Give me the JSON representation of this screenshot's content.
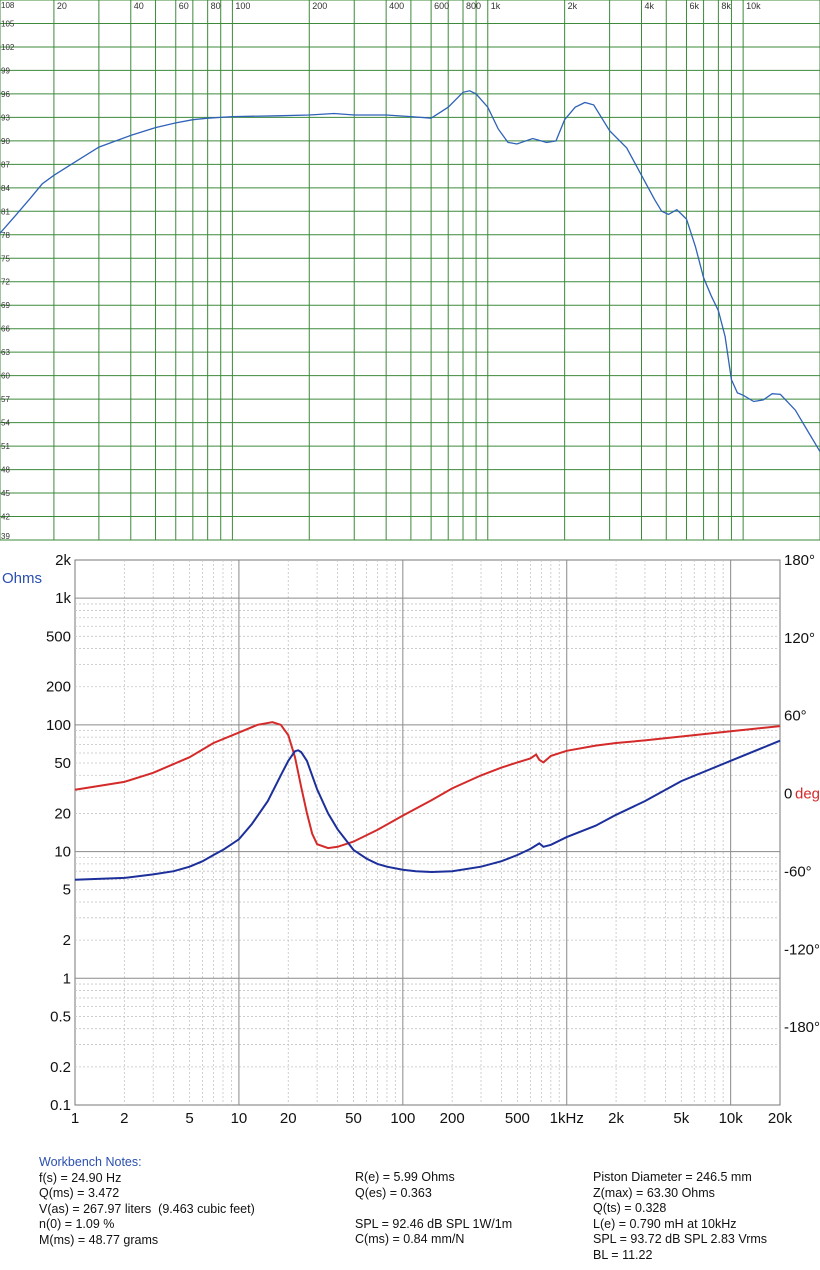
{
  "chart_data": [
    {
      "type": "line",
      "title": "",
      "xlabel": "",
      "ylabel": "",
      "x_scale": "log",
      "xlim": [
        12.3,
        20000
      ],
      "ylim": [
        39,
        108
      ],
      "x_ticks": [
        {
          "value": 20,
          "label": "20"
        },
        {
          "value": 40,
          "label": "40"
        },
        {
          "value": 60,
          "label": "60"
        },
        {
          "value": 80,
          "label": "80"
        },
        {
          "value": 100,
          "label": "100"
        },
        {
          "value": 200,
          "label": "200"
        },
        {
          "value": 400,
          "label": "400"
        },
        {
          "value": 600,
          "label": "600"
        },
        {
          "value": 800,
          "label": "800"
        },
        {
          "value": 1000,
          "label": "1k"
        },
        {
          "value": 2000,
          "label": "2k"
        },
        {
          "value": 4000,
          "label": "4k"
        },
        {
          "value": 6000,
          "label": "6k"
        },
        {
          "value": 8000,
          "label": "8k"
        },
        {
          "value": 10000,
          "label": "10k"
        }
      ],
      "y_ticks": [
        108,
        105,
        102,
        99,
        96,
        93,
        90,
        87,
        84,
        81,
        78,
        75,
        72,
        69,
        66,
        63,
        60,
        57,
        54,
        51,
        48,
        45,
        42,
        39
      ],
      "grid": true,
      "grid_color": "#3c8a3a",
      "series": [
        {
          "color": "#2f62b8",
          "points": [
            [
              12.3,
              78.2
            ],
            [
              14,
              80.3
            ],
            [
              16,
              82.5
            ],
            [
              18,
              84.5
            ],
            [
              20,
              85.6
            ],
            [
              25,
              87.6
            ],
            [
              30,
              89.2
            ],
            [
              40,
              90.7
            ],
            [
              50,
              91.7
            ],
            [
              60,
              92.3
            ],
            [
              70,
              92.7
            ],
            [
              80,
              92.9
            ],
            [
              100,
              93.1
            ],
            [
              150,
              93.2
            ],
            [
              200,
              93.3
            ],
            [
              250,
              93.5
            ],
            [
              300,
              93.3
            ],
            [
              400,
              93.3
            ],
            [
              500,
              93.1
            ],
            [
              600,
              92.9
            ],
            [
              700,
              94.3
            ],
            [
              800,
              96.2
            ],
            [
              850,
              96.4
            ],
            [
              900,
              96.0
            ],
            [
              1000,
              94.3
            ],
            [
              1100,
              91.5
            ],
            [
              1200,
              89.8
            ],
            [
              1300,
              89.6
            ],
            [
              1500,
              90.3
            ],
            [
              1700,
              89.8
            ],
            [
              1850,
              90.0
            ],
            [
              2000,
              92.7
            ],
            [
              2200,
              94.3
            ],
            [
              2400,
              94.9
            ],
            [
              2600,
              94.6
            ],
            [
              3000,
              91.3
            ],
            [
              3500,
              89.1
            ],
            [
              4000,
              85.6
            ],
            [
              4500,
              82.5
            ],
            [
              4800,
              81.0
            ],
            [
              5100,
              80.6
            ],
            [
              5500,
              81.2
            ],
            [
              6000,
              80.0
            ],
            [
              6500,
              76.5
            ],
            [
              7000,
              72.5
            ],
            [
              7500,
              70.2
            ],
            [
              8000,
              68.3
            ],
            [
              8500,
              65.0
            ],
            [
              9000,
              59.5
            ],
            [
              9500,
              57.8
            ],
            [
              10000,
              57.5
            ],
            [
              11000,
              56.7
            ],
            [
              12000,
              56.9
            ],
            [
              13000,
              57.7
            ],
            [
              14000,
              57.6
            ],
            [
              16000,
              55.6
            ],
            [
              18000,
              52.8
            ],
            [
              20000,
              50.3
            ]
          ]
        }
      ]
    },
    {
      "type": "line",
      "title": "",
      "xlabel": "",
      "ylabel": "Ohms",
      "y2label": "deg",
      "x_scale": "log",
      "y_scale": "log",
      "xlim": [
        1,
        20000
      ],
      "ylim": [
        0.1,
        2000
      ],
      "y2lim": [
        -240,
        180
      ],
      "x_ticks": [
        {
          "value": 1,
          "label": "1"
        },
        {
          "value": 2,
          "label": "2"
        },
        {
          "value": 5,
          "label": "5"
        },
        {
          "value": 10,
          "label": "10"
        },
        {
          "value": 20,
          "label": "20"
        },
        {
          "value": 50,
          "label": "50"
        },
        {
          "value": 100,
          "label": "100"
        },
        {
          "value": 200,
          "label": "200"
        },
        {
          "value": 500,
          "label": "500"
        },
        {
          "value": 1000,
          "label": "1kHz"
        },
        {
          "value": 2000,
          "label": "2k"
        },
        {
          "value": 5000,
          "label": "5k"
        },
        {
          "value": 10000,
          "label": "10k"
        },
        {
          "value": 20000,
          "label": "20k"
        }
      ],
      "y_ticks": [
        {
          "value": 2000,
          "label": "2k"
        },
        {
          "value": 1000,
          "label": "1k"
        },
        {
          "value": 500,
          "label": "500"
        },
        {
          "value": 200,
          "label": "200"
        },
        {
          "value": 100,
          "label": "100"
        },
        {
          "value": 50,
          "label": "50"
        },
        {
          "value": 20,
          "label": "20"
        },
        {
          "value": 10,
          "label": "10"
        },
        {
          "value": 5,
          "label": "5"
        },
        {
          "value": 2,
          "label": "2"
        },
        {
          "value": 1,
          "label": "1"
        },
        {
          "value": 0.5,
          "label": "0.5"
        },
        {
          "value": 0.2,
          "label": "0.2"
        },
        {
          "value": 0.1,
          "label": "0.1"
        }
      ],
      "y2_ticks": [
        {
          "value": 180,
          "label": "180°"
        },
        {
          "value": 120,
          "label": "120°"
        },
        {
          "value": 60,
          "label": "60°"
        },
        {
          "value": 0,
          "label": "0"
        },
        {
          "value": -60,
          "label": "-60°"
        },
        {
          "value": -120,
          "label": "-120°"
        },
        {
          "value": -180,
          "label": "-180°"
        }
      ],
      "grid": true,
      "grid_color": "#9a9a9a",
      "series": [
        {
          "color": "#d42a2a",
          "axis": "y2",
          "points": [
            [
              1,
              3
            ],
            [
              2,
              9
            ],
            [
              3,
              16
            ],
            [
              5,
              28
            ],
            [
              7,
              39
            ],
            [
              10,
              47
            ],
            [
              13,
              53
            ],
            [
              16,
              55
            ],
            [
              18,
              53
            ],
            [
              20,
              45
            ],
            [
              22,
              28
            ],
            [
              24,
              5
            ],
            [
              26,
              -15
            ],
            [
              28,
              -31
            ],
            [
              30,
              -39
            ],
            [
              35,
              -42
            ],
            [
              40,
              -41
            ],
            [
              50,
              -37
            ],
            [
              70,
              -28
            ],
            [
              100,
              -17
            ],
            [
              150,
              -5
            ],
            [
              200,
              4
            ],
            [
              300,
              14
            ],
            [
              400,
              20
            ],
            [
              500,
              24
            ],
            [
              600,
              27
            ],
            [
              650,
              30
            ],
            [
              680,
              26
            ],
            [
              720,
              24
            ],
            [
              800,
              29
            ],
            [
              1000,
              33
            ],
            [
              1500,
              37
            ],
            [
              2000,
              39
            ],
            [
              3000,
              41
            ],
            [
              5000,
              44
            ],
            [
              10000,
              48
            ],
            [
              20000,
              52
            ]
          ]
        },
        {
          "color": "#1c2f9a",
          "axis": "y",
          "points": [
            [
              1,
              6.0
            ],
            [
              2,
              6.2
            ],
            [
              3,
              6.6
            ],
            [
              4,
              7.0
            ],
            [
              5,
              7.6
            ],
            [
              6,
              8.4
            ],
            [
              7,
              9.4
            ],
            [
              8,
              10.3
            ],
            [
              10,
              12.5
            ],
            [
              12,
              16.5
            ],
            [
              15,
              25
            ],
            [
              18,
              40
            ],
            [
              20,
              52
            ],
            [
              22,
              62
            ],
            [
              23,
              63
            ],
            [
              24,
              61
            ],
            [
              26,
              52
            ],
            [
              30,
              31
            ],
            [
              35,
              20
            ],
            [
              40,
              15
            ],
            [
              50,
              10.3
            ],
            [
              60,
              8.8
            ],
            [
              70,
              8.0
            ],
            [
              80,
              7.6
            ],
            [
              100,
              7.2
            ],
            [
              120,
              7.0
            ],
            [
              150,
              6.9
            ],
            [
              200,
              7.0
            ],
            [
              300,
              7.6
            ],
            [
              400,
              8.4
            ],
            [
              500,
              9.4
            ],
            [
              600,
              10.5
            ],
            [
              680,
              11.6
            ],
            [
              720,
              10.9
            ],
            [
              800,
              11.3
            ],
            [
              1000,
              13
            ],
            [
              1500,
              16
            ],
            [
              2000,
              19.5
            ],
            [
              3000,
              25
            ],
            [
              5000,
              36
            ],
            [
              10000,
              52
            ],
            [
              20000,
              75
            ]
          ]
        }
      ]
    }
  ],
  "notes": {
    "title": "Workbench Notes:",
    "col1": [
      "f(s) = 24.90 Hz",
      "Q(ms) = 3.472",
      "V(as) = 267.97 liters  (9.463 cubic feet)",
      "n(0) = 1.09 %",
      "M(ms) = 48.77 grams"
    ],
    "col2": [
      "R(e) = 5.99 Ohms",
      "Q(es) = 0.363",
      "",
      "SPL = 92.46 dB SPL 1W/1m",
      "C(ms) = 0.84 mm/N"
    ],
    "col3": [
      "Piston Diameter = 246.5 mm",
      "Z(max) = 63.30 Ohms",
      "Q(ts) = 0.328",
      "L(e) = 0.790 mH at 10kHz",
      "SPL = 93.72 dB SPL 2.83 Vrms",
      "BL = 11.22"
    ]
  }
}
